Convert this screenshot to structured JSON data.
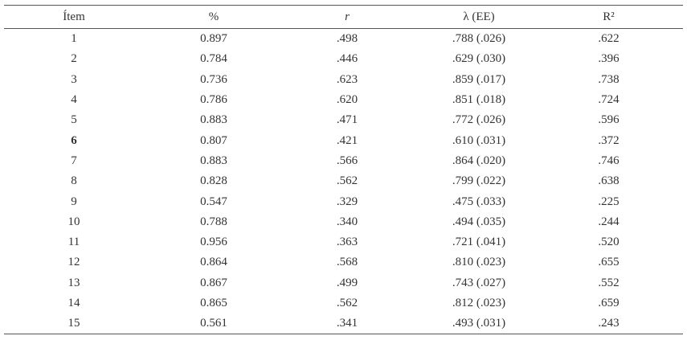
{
  "table": {
    "header": [
      "Ítem",
      "%",
      "r",
      "λ (EE)",
      "R²"
    ],
    "rows": [
      [
        "1",
        "0.897",
        ".498",
        ".788 (.026)",
        ".622"
      ],
      [
        "2",
        "0.784",
        ".446",
        ".629 (.030)",
        ".396"
      ],
      [
        "3",
        "0.736",
        ".623",
        ".859 (.017)",
        ".738"
      ],
      [
        "4",
        "0.786",
        ".620",
        ".851 (.018)",
        ".724"
      ],
      [
        "5",
        "0.883",
        ".471",
        ".772 (.026)",
        ".596"
      ],
      [
        "6",
        "0.807",
        ".421",
        ".610 (.031)",
        ".372"
      ],
      [
        "7",
        "0.883",
        ".566",
        ".864 (.020)",
        ".746"
      ],
      [
        "8",
        "0.828",
        ".562",
        ".799 (.022)",
        ".638"
      ],
      [
        "9",
        "0.547",
        ".329",
        ".475 (.033)",
        ".225"
      ],
      [
        "10",
        "0.788",
        ".340",
        ".494 (.035)",
        ".244"
      ],
      [
        "11",
        "0.956",
        ".363",
        ".721 (.041)",
        ".520"
      ],
      [
        "12",
        "0.864",
        ".568",
        ".810 (.023)",
        ".655"
      ],
      [
        "13",
        "0.867",
        ".499",
        ".743 (.027)",
        ".552"
      ],
      [
        "14",
        "0.865",
        ".562",
        ".812 (.023)",
        ".659"
      ],
      [
        "15",
        "0.561",
        ".341",
        ".493 (.031)",
        ".243"
      ]
    ]
  }
}
